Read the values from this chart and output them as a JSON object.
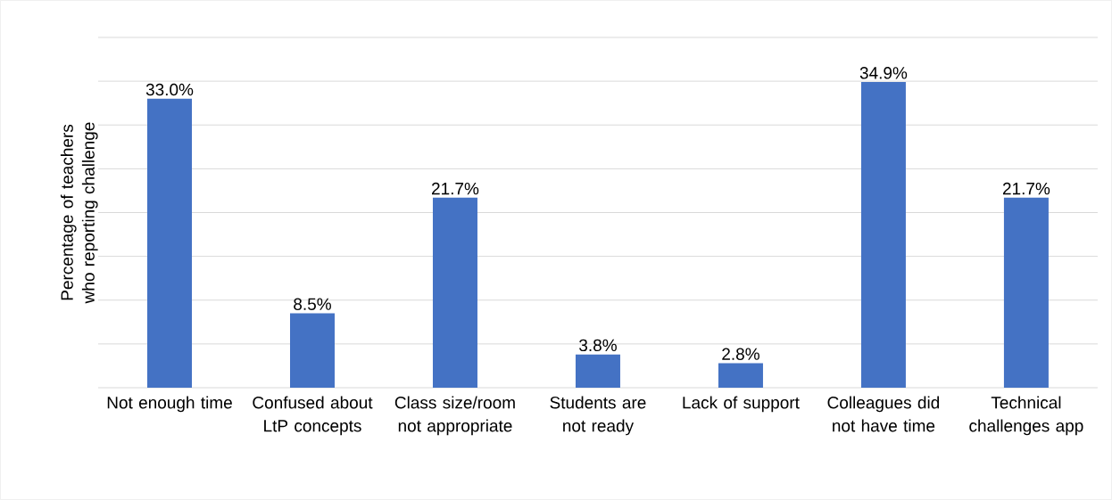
{
  "chart_data": {
    "type": "bar",
    "ylabel": "Percentage of teachers who reporting challenge",
    "categories": [
      "Not enough time",
      "Confused about LtP concepts",
      "Class size/room not appropriate",
      "Students are not ready",
      "Lack of support",
      "Colleagues did not have time",
      "Technical challenges app"
    ],
    "values": [
      33.0,
      8.5,
      21.7,
      3.8,
      2.8,
      34.9,
      21.7
    ],
    "value_labels": [
      "33.0%",
      "8.5%",
      "21.7%",
      "3.8%",
      "2.8%",
      "34.9%",
      "21.7%"
    ],
    "color": "#4472c4",
    "ylim": [
      0,
      40
    ],
    "yticks": [
      {
        "value": 0,
        "label": null
      },
      {
        "value": 5,
        "label": null
      },
      {
        "value": 10,
        "label": null
      },
      {
        "value": 15,
        "label": null
      },
      {
        "value": 20,
        "label": null
      },
      {
        "value": 25,
        "label": null
      },
      {
        "value": 30,
        "label": null
      },
      {
        "value": 35,
        "label": null
      },
      {
        "value": 40,
        "label": null
      }
    ],
    "grid": "y",
    "tick_labels": "x"
  }
}
